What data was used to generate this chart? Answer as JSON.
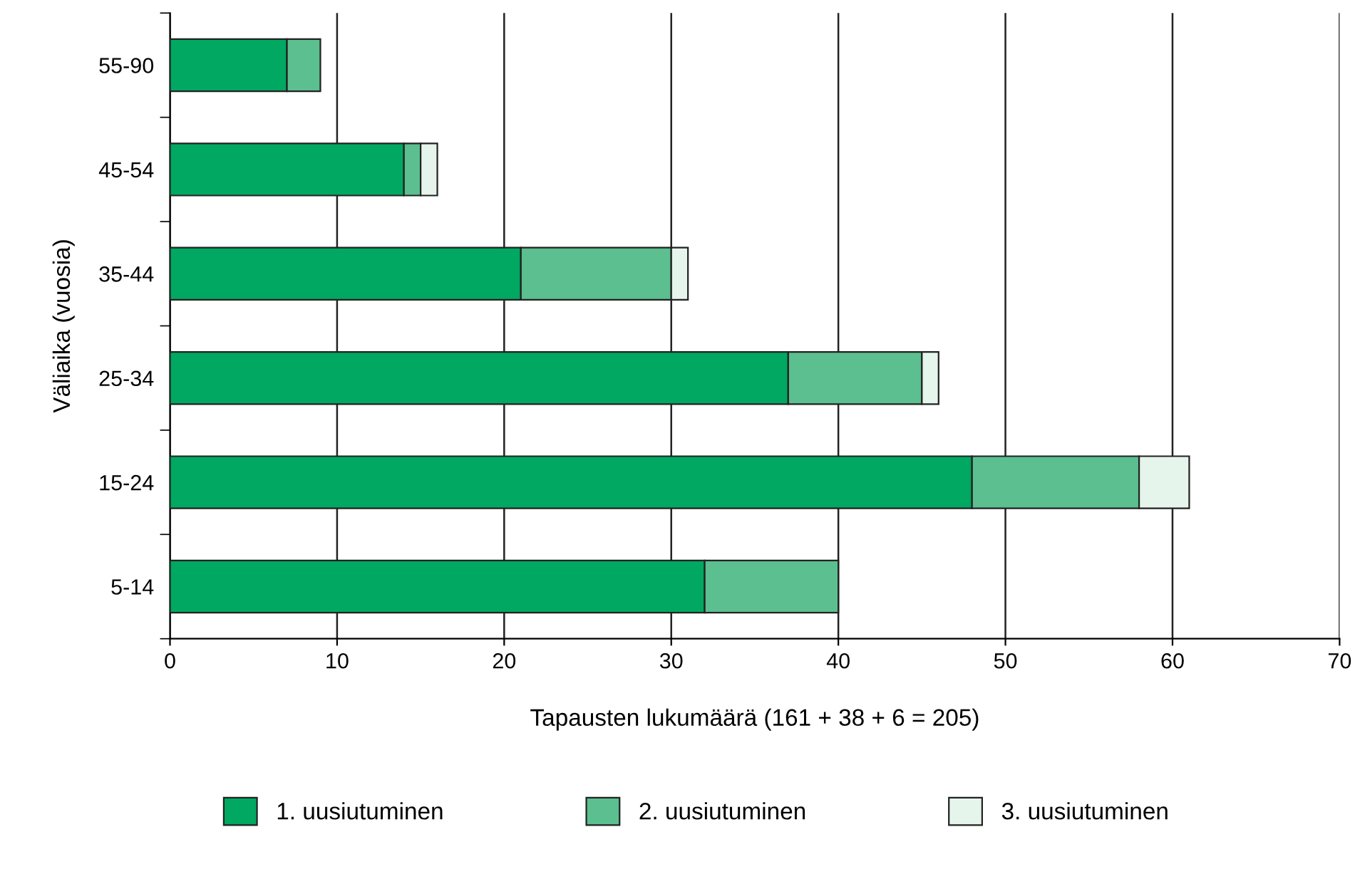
{
  "chart_data": {
    "type": "bar",
    "orientation": "horizontal",
    "stacked": true,
    "xlabel": "Tapausten lukumäärä (161 + 38 + 6 = 205)",
    "ylabel": "Väliaika (vuosia)",
    "categories": [
      "55-90",
      "45-54",
      "35-44",
      "25-34",
      "15-24",
      "5-14"
    ],
    "series": [
      {
        "name": "1. uusiutuminen",
        "color": "#00a862",
        "values": [
          7,
          14,
          21,
          37,
          48,
          32
        ]
      },
      {
        "name": "2. uusiutuminen",
        "color": "#5bbf8f",
        "values": [
          2,
          1,
          9,
          8,
          10,
          8
        ]
      },
      {
        "name": "3. uusiutuminen",
        "color": "#e6f5ec",
        "values": [
          null,
          1,
          1,
          1,
          3,
          null
        ]
      }
    ],
    "xlim": [
      0,
      70
    ],
    "xticks": [
      0,
      10,
      20,
      30,
      40,
      50,
      60,
      70
    ],
    "grid": "x",
    "legend": "bottom"
  }
}
